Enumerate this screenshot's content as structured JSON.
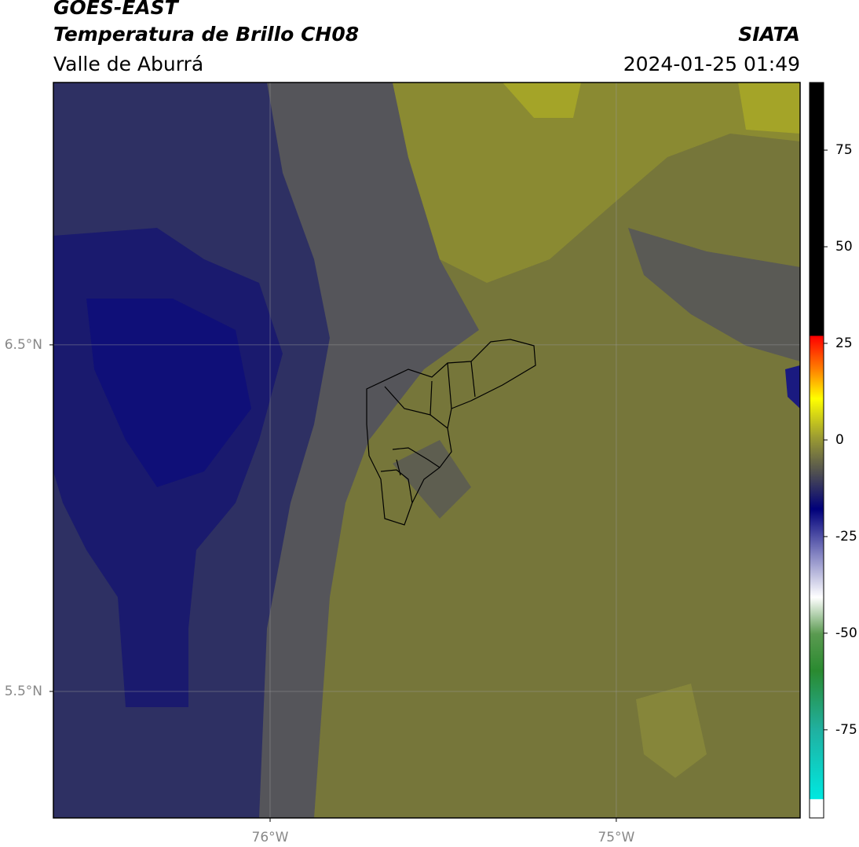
{
  "title": "GOES-EAST",
  "subtitle": "Temperatura de Brillo CH08",
  "region": "Valle de Aburrá",
  "agency": "SIATA",
  "timestamp": "2024-01-25 01:49",
  "map": {
    "xlim": [
      -76.626,
      -74.469
    ],
    "xticks": [
      {
        "value": -76,
        "label": "76°W"
      },
      {
        "value": -75,
        "label": "75°W"
      }
    ],
    "ylim": [
      5.135,
      7.257
    ],
    "yticks": [
      {
        "value": 5.5,
        "label": "5.5°N"
      },
      {
        "value": 6.5,
        "label": "6.5°N"
      }
    ],
    "grid": true
  },
  "colorbar": {
    "lim": [
      -97.8,
      92.5
    ],
    "ticks": [
      -75,
      -50,
      -25,
      0,
      25,
      50,
      75
    ]
  }
}
